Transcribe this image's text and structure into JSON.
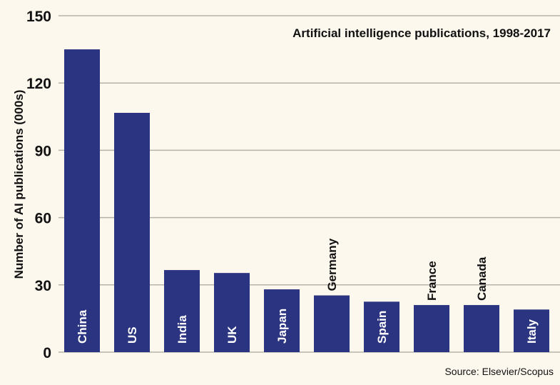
{
  "chart_data": {
    "type": "bar",
    "title": "Artificial intelligence publications, 1998-2017",
    "xlabel": "",
    "ylabel": "Number of AI publications (000s)",
    "ylim": [
      0,
      150
    ],
    "yticks": [
      0,
      30,
      60,
      90,
      120,
      150
    ],
    "grid": true,
    "categories": [
      "China",
      "US",
      "India",
      "UK",
      "Japan",
      "Germany",
      "Spain",
      "France",
      "Canada",
      "Italy"
    ],
    "values": [
      135,
      106.7,
      36.6,
      35.3,
      28,
      25.3,
      22.5,
      21,
      21,
      19
    ],
    "label_outside": [
      false,
      false,
      false,
      false,
      false,
      true,
      false,
      true,
      true,
      false
    ],
    "bar_color": "#2b3480",
    "grid_color": "#b5b2aa",
    "source": "Source: Elsevier/Scopus"
  }
}
